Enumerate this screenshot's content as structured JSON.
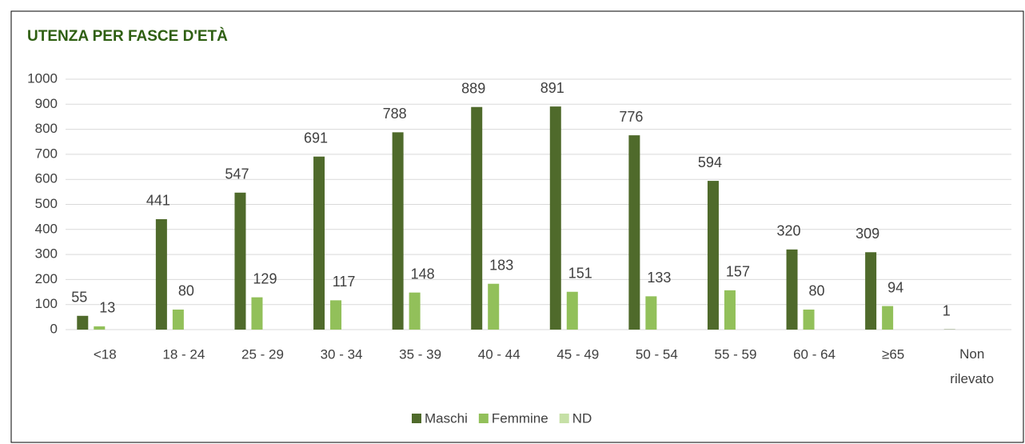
{
  "chart_data": {
    "type": "bar",
    "title": "UTENZA PER FASCE D'ETÀ",
    "categories": [
      "<18",
      "18 - 24",
      "25 - 29",
      "30 - 34",
      "35 - 39",
      "40 - 44",
      "45 - 49",
      "50 - 54",
      "55 - 59",
      "60 - 64",
      "≥65",
      "Non rilevato"
    ],
    "series": [
      {
        "name": "Maschi",
        "color": "#4f6a2b",
        "values": [
          55,
          441,
          547,
          691,
          788,
          889,
          891,
          776,
          594,
          320,
          309,
          1
        ]
      },
      {
        "name": "Femmine",
        "color": "#92c05a",
        "values": [
          13,
          80,
          129,
          117,
          148,
          183,
          151,
          133,
          157,
          80,
          94,
          null
        ]
      },
      {
        "name": "ND",
        "color": "#c6e0a6",
        "values": [
          null,
          null,
          null,
          null,
          null,
          null,
          null,
          null,
          null,
          null,
          null,
          null
        ]
      }
    ],
    "ylim": [
      0,
      1000
    ],
    "yticks": [
      0,
      100,
      200,
      300,
      400,
      500,
      600,
      700,
      800,
      900,
      1000
    ],
    "grid": true,
    "legend": "bottom"
  }
}
